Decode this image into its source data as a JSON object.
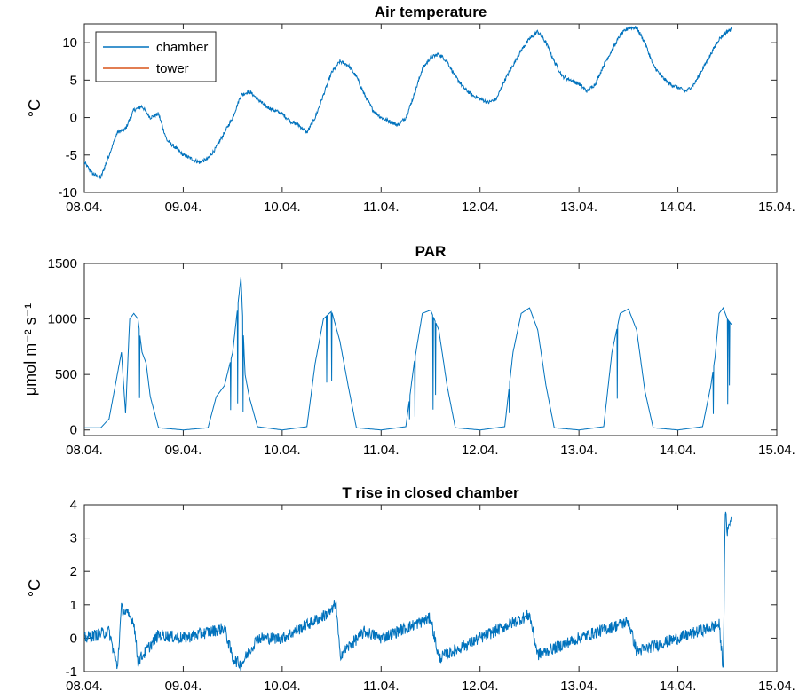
{
  "chart_data": [
    {
      "type": "line",
      "title": "Air temperature",
      "ylabel": "°C",
      "xlabel": "",
      "ylim": [
        -10,
        12.5
      ],
      "xlim": [
        "08.04.",
        "15.04."
      ],
      "x_ticks": [
        "08.04.",
        "09.04.",
        "10.04.",
        "11.04.",
        "12.04.",
        "13.04.",
        "14.04.",
        "15.04."
      ],
      "y_ticks": [
        "-10",
        "-5",
        "0",
        "5",
        "10"
      ],
      "legend": {
        "placement": "top-left",
        "entries": [
          "chamber",
          "tower"
        ]
      },
      "series": [
        {
          "name": "chamber",
          "color": "#0072BD",
          "points": [
            [
              "08.04. 00:00",
              -6.0
            ],
            [
              "08.04. 02:00",
              -7.5
            ],
            [
              "08.04. 04:00",
              -8.0
            ],
            [
              "08.04. 06:00",
              -5.0
            ],
            [
              "08.04. 08:00",
              -2.0
            ],
            [
              "08.04. 10:00",
              -1.5
            ],
            [
              "08.04. 12:00",
              1.0
            ],
            [
              "08.04. 14:00",
              1.5
            ],
            [
              "08.04. 16:00",
              0.0
            ],
            [
              "08.04. 18:00",
              0.5
            ],
            [
              "08.04. 20:00",
              -3.0
            ],
            [
              "08.04. 22:00",
              -4.0
            ],
            [
              "09.04. 00:00",
              -5.0
            ],
            [
              "09.04. 02:00",
              -5.5
            ],
            [
              "09.04. 04:00",
              -6.0
            ],
            [
              "09.04. 06:00",
              -5.5
            ],
            [
              "09.04. 08:00",
              -4.0
            ],
            [
              "09.04. 10:00",
              -2.0
            ],
            [
              "09.04. 12:00",
              0.0
            ],
            [
              "09.04. 14:00",
              3.0
            ],
            [
              "09.04. 16:00",
              3.5
            ],
            [
              "09.04. 18:00",
              2.5
            ],
            [
              "09.04. 20:00",
              1.5
            ],
            [
              "09.04. 22:00",
              1.0
            ],
            [
              "10.04. 00:00",
              0.5
            ],
            [
              "10.04. 02:00",
              -0.5
            ],
            [
              "10.04. 04:00",
              -1.0
            ],
            [
              "10.04. 06:00",
              -2.0
            ],
            [
              "10.04. 08:00",
              0.0
            ],
            [
              "10.04. 10:00",
              3.0
            ],
            [
              "10.04. 12:00",
              6.0
            ],
            [
              "10.04. 14:00",
              7.5
            ],
            [
              "10.04. 16:00",
              7.0
            ],
            [
              "10.04. 18:00",
              5.5
            ],
            [
              "10.04. 20:00",
              3.0
            ],
            [
              "10.04. 22:00",
              1.0
            ],
            [
              "11.04. 00:00",
              0.0
            ],
            [
              "11.04. 02:00",
              -0.5
            ],
            [
              "11.04. 04:00",
              -1.0
            ],
            [
              "11.04. 06:00",
              0.0
            ],
            [
              "11.04. 08:00",
              3.0
            ],
            [
              "11.04. 10:00",
              6.5
            ],
            [
              "11.04. 12:00",
              8.0
            ],
            [
              "11.04. 14:00",
              8.5
            ],
            [
              "11.04. 16:00",
              7.5
            ],
            [
              "11.04. 18:00",
              5.5
            ],
            [
              "11.04. 20:00",
              4.0
            ],
            [
              "11.04. 22:00",
              3.0
            ],
            [
              "12.04. 00:00",
              2.5
            ],
            [
              "12.04. 02:00",
              2.0
            ],
            [
              "12.04. 04:00",
              2.5
            ],
            [
              "12.04. 06:00",
              5.0
            ],
            [
              "12.04. 08:00",
              7.0
            ],
            [
              "12.04. 10:00",
              9.0
            ],
            [
              "12.04. 12:00",
              10.5
            ],
            [
              "12.04. 14:00",
              11.5
            ],
            [
              "12.04. 16:00",
              10.0
            ],
            [
              "12.04. 18:00",
              7.5
            ],
            [
              "12.04. 20:00",
              5.5
            ],
            [
              "12.04. 22:00",
              5.0
            ],
            [
              "13.04. 00:00",
              4.5
            ],
            [
              "13.04. 02:00",
              3.5
            ],
            [
              "13.04. 04:00",
              4.5
            ],
            [
              "13.04. 06:00",
              7.0
            ],
            [
              "13.04. 08:00",
              9.0
            ],
            [
              "13.04. 10:00",
              11.0
            ],
            [
              "13.04. 12:00",
              12.0
            ],
            [
              "13.04. 14:00",
              12.0
            ],
            [
              "13.04. 16:00",
              10.0
            ],
            [
              "13.04. 18:00",
              7.0
            ],
            [
              "13.04. 20:00",
              5.5
            ],
            [
              "13.04. 22:00",
              4.5
            ],
            [
              "14.04. 00:00",
              4.0
            ],
            [
              "14.04. 02:00",
              3.5
            ],
            [
              "14.04. 04:00",
              4.5
            ],
            [
              "14.04. 06:00",
              6.5
            ],
            [
              "14.04. 08:00",
              8.5
            ],
            [
              "14.04. 10:00",
              10.5
            ],
            [
              "14.04. 12:00",
              11.5
            ],
            [
              "14.04. 13:00",
              11.8
            ]
          ]
        },
        {
          "name": "tower",
          "color": "#D95319",
          "points": []
        }
      ]
    },
    {
      "type": "line",
      "title": "PAR",
      "ylabel": "μmol m⁻² s⁻¹",
      "xlabel": "",
      "ylim": [
        -50,
        1500
      ],
      "xlim": [
        "08.04.",
        "15.04."
      ],
      "x_ticks": [
        "08.04.",
        "09.04.",
        "10.04.",
        "11.04.",
        "12.04.",
        "13.04.",
        "14.04.",
        "15.04."
      ],
      "y_ticks": [
        "0",
        "500",
        "1000",
        "1500"
      ],
      "series": [
        {
          "name": "",
          "color": "#0072BD",
          "points": [
            [
              "08.04. 00:00",
              20
            ],
            [
              "08.04. 04:00",
              20
            ],
            [
              "08.04. 06:00",
              100
            ],
            [
              "08.04. 08:00",
              500
            ],
            [
              "08.04. 09:00",
              700
            ],
            [
              "08.04. 10:00",
              150
            ],
            [
              "08.04. 11:00",
              1000
            ],
            [
              "08.04. 12:00",
              1050
            ],
            [
              "08.04. 13:00",
              1000
            ],
            [
              "08.04. 14:00",
              700
            ],
            [
              "08.04. 15:00",
              600
            ],
            [
              "08.04. 16:00",
              300
            ],
            [
              "08.04. 18:00",
              20
            ],
            [
              "09.04. 00:00",
              0
            ],
            [
              "09.04. 06:00",
              20
            ],
            [
              "09.04. 08:00",
              300
            ],
            [
              "09.04. 10:00",
              400
            ],
            [
              "09.04. 12:00",
              700
            ],
            [
              "09.04. 14:00",
              1380
            ],
            [
              "09.04. 15:00",
              500
            ],
            [
              "09.04. 16:00",
              300
            ],
            [
              "09.04. 18:00",
              30
            ],
            [
              "10.04. 00:00",
              0
            ],
            [
              "10.04. 06:00",
              30
            ],
            [
              "10.04. 08:00",
              600
            ],
            [
              "10.04. 10:00",
              1000
            ],
            [
              "10.04. 12:00",
              1070
            ],
            [
              "10.04. 14:00",
              800
            ],
            [
              "10.04. 16:00",
              400
            ],
            [
              "10.04. 18:00",
              20
            ],
            [
              "11.04. 00:00",
              0
            ],
            [
              "11.04. 06:00",
              30
            ],
            [
              "11.04. 08:00",
              600
            ],
            [
              "11.04. 10:00",
              1050
            ],
            [
              "11.04. 12:00",
              1080
            ],
            [
              "11.04. 14:00",
              900
            ],
            [
              "11.04. 16:00",
              400
            ],
            [
              "11.04. 18:00",
              20
            ],
            [
              "12.04. 00:00",
              0
            ],
            [
              "12.04. 06:00",
              30
            ],
            [
              "12.04. 08:00",
              700
            ],
            [
              "12.04. 10:00",
              1050
            ],
            [
              "12.04. 12:00",
              1100
            ],
            [
              "12.04. 14:00",
              900
            ],
            [
              "12.04. 16:00",
              400
            ],
            [
              "12.04. 18:00",
              20
            ],
            [
              "13.04. 00:00",
              0
            ],
            [
              "13.04. 06:00",
              30
            ],
            [
              "13.04. 08:00",
              700
            ],
            [
              "13.04. 10:00",
              1050
            ],
            [
              "13.04. 12:00",
              1090
            ],
            [
              "13.04. 14:00",
              900
            ],
            [
              "13.04. 16:00",
              350
            ],
            [
              "13.04. 18:00",
              20
            ],
            [
              "14.04. 00:00",
              0
            ],
            [
              "14.04. 06:00",
              30
            ],
            [
              "14.04. 08:00",
              400
            ],
            [
              "14.04. 09:00",
              650
            ],
            [
              "14.04. 10:00",
              1050
            ],
            [
              "14.04. 11:00",
              1100
            ],
            [
              "14.04. 12:00",
              1000
            ],
            [
              "14.04. 13:00",
              950
            ]
          ]
        }
      ]
    },
    {
      "type": "line",
      "title": "T rise in closed chamber",
      "ylabel": "°C",
      "xlabel": "",
      "ylim": [
        -1,
        4
      ],
      "xlim": [
        "08.04.",
        "15.04."
      ],
      "x_ticks": [
        "08.04.",
        "09.04.",
        "10.04.",
        "11.04.",
        "12.04.",
        "13.04.",
        "14.04.",
        "15.04."
      ],
      "y_ticks": [
        "-1",
        "0",
        "1",
        "2",
        "3",
        "4"
      ],
      "series": [
        {
          "name": "",
          "color": "#0072BD",
          "points": [
            [
              "08.04. 00:00",
              0.0
            ],
            [
              "08.04. 06:00",
              0.2
            ],
            [
              "08.04. 08:00",
              -0.9
            ],
            [
              "08.04. 09:00",
              0.9
            ],
            [
              "08.04. 12:00",
              0.5
            ],
            [
              "08.04. 13:00",
              -0.7
            ],
            [
              "08.04. 18:00",
              0.1
            ],
            [
              "09.04. 00:00",
              0.0
            ],
            [
              "09.04. 10:00",
              0.3
            ],
            [
              "09.04. 12:00",
              -0.6
            ],
            [
              "09.04. 14:00",
              -0.8
            ],
            [
              "09.04. 18:00",
              0.0
            ],
            [
              "10.04. 00:00",
              0.0
            ],
            [
              "10.04. 12:00",
              0.8
            ],
            [
              "10.04. 13:00",
              1.1
            ],
            [
              "10.04. 14:00",
              -0.5
            ],
            [
              "10.04. 20:00",
              0.2
            ],
            [
              "11.04. 00:00",
              0.0
            ],
            [
              "11.04. 12:00",
              0.6
            ],
            [
              "11.04. 14:00",
              -0.6
            ],
            [
              "12.04. 00:00",
              0.0
            ],
            [
              "12.04. 12:00",
              0.7
            ],
            [
              "12.04. 14:00",
              -0.5
            ],
            [
              "13.04. 00:00",
              0.0
            ],
            [
              "13.04. 12:00",
              0.5
            ],
            [
              "13.04. 14:00",
              -0.4
            ],
            [
              "14.04. 00:00",
              0.0
            ],
            [
              "14.04. 10:00",
              0.4
            ],
            [
              "14.04. 11:00",
              -0.9
            ],
            [
              "14.04. 11:30",
              3.8
            ],
            [
              "14.04. 12:00",
              3.2
            ],
            [
              "14.04. 13:00",
              3.6
            ]
          ]
        }
      ]
    }
  ]
}
